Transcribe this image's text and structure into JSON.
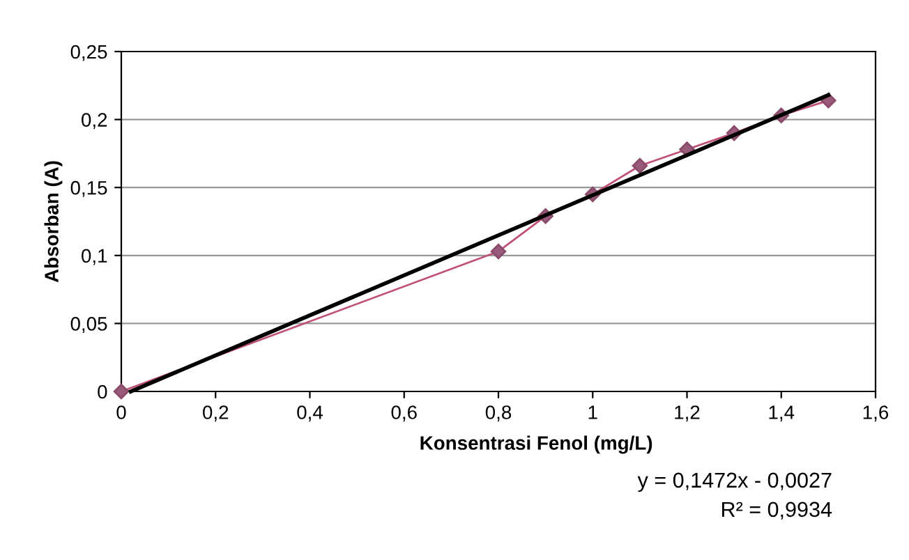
{
  "chart_data": {
    "type": "line",
    "xlabel": "Konsentrasi Fenol (mg/L)",
    "ylabel": "Absorban (A)",
    "x": [
      0,
      0.8,
      0.9,
      1.0,
      1.1,
      1.2,
      1.3,
      1.4,
      1.5
    ],
    "series": [
      {
        "color": "#c0507a",
        "marker": "diamond",
        "values": [
          0,
          0.103,
          0.129,
          0.145,
          0.166,
          0.178,
          0.19,
          0.203,
          0.214
        ]
      },
      {
        "type": "line",
        "color": "#000000",
        "marker": "none",
        "x": [
          0.02,
          1.5
        ],
        "values": [
          0,
          0.218
        ]
      }
    ],
    "xlim": [
      0,
      1.6
    ],
    "xticks": [
      {
        "value": 0,
        "label": "0"
      },
      {
        "value": 0.2,
        "label": "0,2"
      },
      {
        "value": 0.4,
        "label": "0,4"
      },
      {
        "value": 0.6,
        "label": "0,6"
      },
      {
        "value": 0.8,
        "label": "0,8"
      },
      {
        "value": 1,
        "label": "1"
      },
      {
        "value": 1.2,
        "label": "1,2"
      },
      {
        "value": 1.4,
        "label": "1,4"
      },
      {
        "value": 1.6,
        "label": "1,6"
      }
    ],
    "ylim": [
      0,
      0.25
    ],
    "yticks": [
      {
        "value": 0,
        "label": "0"
      },
      {
        "value": 0.05,
        "label": "0,05"
      },
      {
        "value": 0.1,
        "label": "0,1"
      },
      {
        "value": 0.15,
        "label": "0,15"
      },
      {
        "value": 0.2,
        "label": "0,2"
      },
      {
        "value": 0.25,
        "label": "0,25"
      }
    ],
    "grid": "y",
    "legend": false,
    "annotations": [
      "y = 0,1472x - 0,0027",
      "R² = 0,9934"
    ]
  }
}
